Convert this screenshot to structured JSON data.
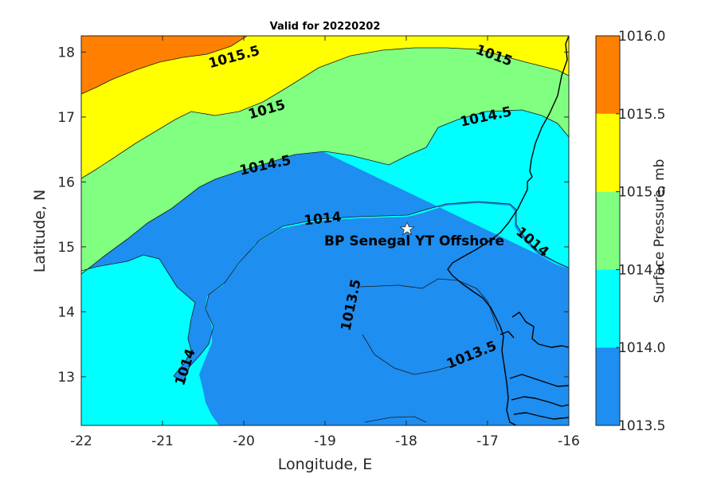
{
  "chart_data": {
    "type": "contour_map",
    "title": "Valid for 20220202",
    "xlabel": "Longitude, E",
    "ylabel": "Latitude, N",
    "xlim": [
      -22,
      -16
    ],
    "ylim": [
      12.25,
      18.25
    ],
    "x_ticks": [
      -22,
      -21,
      -20,
      -19,
      -18,
      -17,
      -16
    ],
    "y_ticks": [
      13,
      14,
      15,
      16,
      17,
      18
    ],
    "colorbar": {
      "label": "Surface Pressure, mb",
      "ticks": [
        "1013.5",
        "1014.0",
        "1014.5",
        "1015.0",
        "1015.5",
        "1016.0"
      ],
      "levels": [
        {
          "range": [
            1013.5,
            1014.0
          ],
          "color": "#1e8ef0"
        },
        {
          "range": [
            1014.0,
            1014.5
          ],
          "color": "#00ffff"
        },
        {
          "range": [
            1014.5,
            1015.0
          ],
          "color": "#80ff80"
        },
        {
          "range": [
            1015.0,
            1015.5
          ],
          "color": "#ffff00"
        },
        {
          "range": [
            1015.5,
            1016.0
          ],
          "color": "#ff8000"
        }
      ]
    },
    "contour_labels": [
      {
        "text": "1015.5",
        "lon": -20.6,
        "lat": 17.97
      },
      {
        "text": "1015",
        "lon": -16.98,
        "lat": 17.95
      },
      {
        "text": "1015",
        "lon": -19.68,
        "lat": 17.1
      },
      {
        "text": "1014.5",
        "lon": -17.22,
        "lat": 16.95
      },
      {
        "text": "1014.5",
        "lon": -19.55,
        "lat": 16.2
      },
      {
        "text": "1014",
        "lon": -19.12,
        "lat": 15.6
      },
      {
        "text": "1014",
        "lon": -16.45,
        "lat": 15.1
      },
      {
        "text": "1013.5",
        "lon": -18.75,
        "lat": 13.85
      },
      {
        "text": "1013.5",
        "lon": -17.32,
        "lat": 13.3
      },
      {
        "text": "1014",
        "lon": -20.73,
        "lat": 13.1
      }
    ],
    "site": {
      "name": "BP Senegal YT Offshore",
      "lon": -18.0,
      "lat": 15.25,
      "marker": "star"
    }
  }
}
